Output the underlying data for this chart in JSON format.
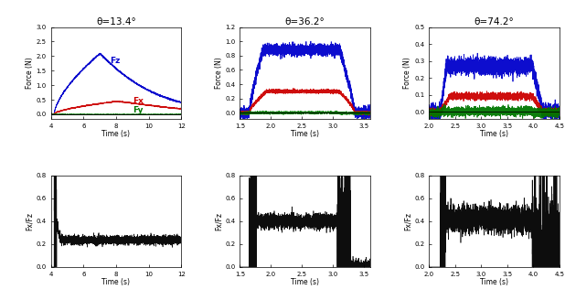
{
  "titles": [
    "θ=13.4°",
    "θ=36.2°",
    "θ=74.2°"
  ],
  "color_fz": "#0000cc",
  "color_fx": "#cc0000",
  "color_fy": "#007700",
  "color_ratio": "#000000",
  "panels": [
    {
      "xlim": [
        4,
        12
      ],
      "ylim_force": [
        -0.15,
        3.0
      ],
      "yticks_force": [
        0,
        0.5,
        1.0,
        1.5,
        2.0,
        2.5,
        3.0
      ],
      "ylim_ratio": [
        0,
        0.8
      ],
      "yticks_ratio": [
        0,
        0.2,
        0.4,
        0.6,
        0.8
      ],
      "xticks_force": [
        4,
        6,
        8,
        10,
        12
      ],
      "xticks_ratio": [
        4,
        6,
        8,
        10,
        12
      ],
      "fz_peak_time": 7.0,
      "fz_peak": 2.08,
      "fx_peak_time": 8.0,
      "fx_peak": 0.44,
      "t_start": 4.2,
      "t_end": 12.0,
      "ratio_level": 0.235,
      "ratio_noise": 0.018,
      "label_fz": "Fz",
      "label_fx": "Fx",
      "label_fy": "Fy"
    },
    {
      "xlim": [
        1.5,
        3.6
      ],
      "ylim_force": [
        -0.08,
        1.2
      ],
      "yticks_force": [
        0,
        0.2,
        0.4,
        0.6,
        0.8,
        1.0,
        1.2
      ],
      "ylim_ratio": [
        0,
        0.8
      ],
      "yticks_ratio": [
        0,
        0.2,
        0.4,
        0.6,
        0.8
      ],
      "xticks_force": [
        1.5,
        2.0,
        2.5,
        3.0,
        3.5
      ],
      "xticks_ratio": [
        1.5,
        2.0,
        2.5,
        3.0,
        3.5
      ],
      "fz_peak": 0.88,
      "fx_peak": 0.3,
      "t_start": 1.65,
      "t_end": 3.1,
      "t_fall_end": 3.35,
      "ratio_level": 0.4,
      "ratio_noise": 0.032,
      "label_fz": "",
      "label_fx": "",
      "label_fy": ""
    },
    {
      "xlim": [
        2.0,
        4.5
      ],
      "ylim_force": [
        -0.04,
        0.5
      ],
      "yticks_force": [
        0,
        0.1,
        0.2,
        0.3,
        0.4,
        0.5
      ],
      "ylim_ratio": [
        0,
        0.8
      ],
      "yticks_ratio": [
        0,
        0.2,
        0.4,
        0.6,
        0.8
      ],
      "xticks_force": [
        2.0,
        2.5,
        3.0,
        3.5,
        4.0,
        4.5
      ],
      "xticks_ratio": [
        2.0,
        2.5,
        3.0,
        3.5,
        4.0,
        4.5
      ],
      "fz_peak": 0.27,
      "fx_peak": 0.092,
      "t_start": 2.22,
      "t_end": 3.98,
      "t_fall_end": 4.15,
      "ratio_level": 0.42,
      "ratio_noise": 0.055,
      "label_fz": "",
      "label_fx": "",
      "label_fy": ""
    }
  ],
  "xlabel": "Time (s)",
  "ylabel_force": "Force (N)",
  "ylabel_ratio": "Fx/Fz",
  "background_color": "#ffffff"
}
